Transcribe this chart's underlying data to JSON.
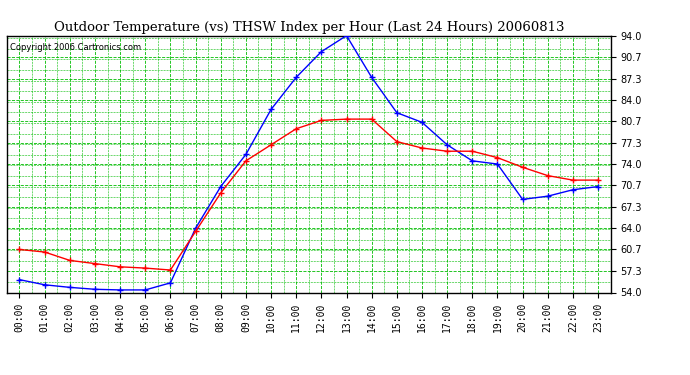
{
  "title": "Outdoor Temperature (vs) THSW Index per Hour (Last 24 Hours) 20060813",
  "copyright": "Copyright 2006 Cartronics.com",
  "hours": [
    0,
    1,
    2,
    3,
    4,
    5,
    6,
    7,
    8,
    9,
    10,
    11,
    12,
    13,
    14,
    15,
    16,
    17,
    18,
    19,
    20,
    21,
    22,
    23
  ],
  "temp": [
    60.7,
    60.3,
    59.0,
    58.5,
    58.0,
    57.8,
    57.5,
    63.5,
    69.5,
    74.5,
    77.0,
    79.5,
    80.8,
    81.0,
    81.0,
    77.5,
    76.5,
    76.0,
    76.0,
    75.0,
    73.5,
    72.2,
    71.5,
    71.5
  ],
  "thsw": [
    56.0,
    55.2,
    54.8,
    54.5,
    54.4,
    54.4,
    55.5,
    64.0,
    70.5,
    75.5,
    82.5,
    87.5,
    91.5,
    94.0,
    87.5,
    82.0,
    80.5,
    77.0,
    74.5,
    74.0,
    68.5,
    69.0,
    70.0,
    70.5
  ],
  "ylim": [
    54.0,
    94.0
  ],
  "yticks": [
    54.0,
    57.3,
    60.7,
    64.0,
    67.3,
    70.7,
    74.0,
    77.3,
    80.7,
    84.0,
    87.3,
    90.7,
    94.0
  ],
  "bg_color": "#ffffff",
  "plot_bg_color": "#ffffff",
  "grid_color": "#00bb00",
  "temp_color": "#ff0000",
  "thsw_color": "#0000ff",
  "border_color": "#000000",
  "title_fontsize": 9.5,
  "tick_fontsize": 7,
  "copyright_fontsize": 6
}
